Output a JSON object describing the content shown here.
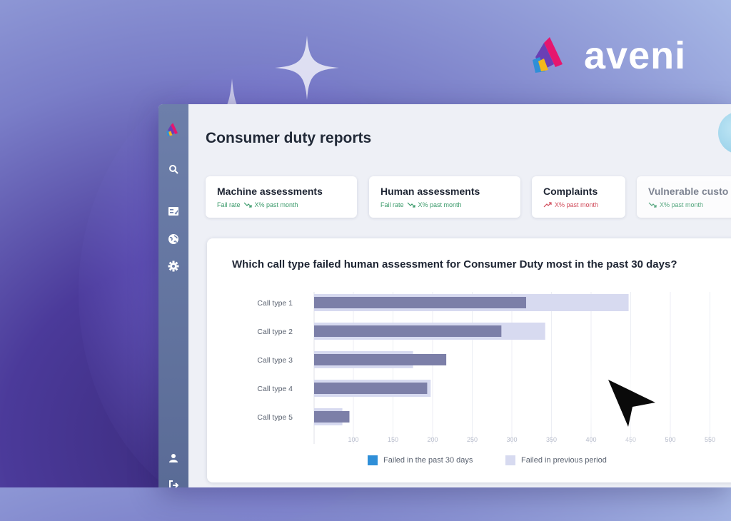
{
  "brand": {
    "name": "aveni",
    "colors": {
      "pink": "#e6166e",
      "blue": "#2f8fd8",
      "yellow": "#f5b81a",
      "purple": "#6a3fb5"
    }
  },
  "header": {
    "title": "Consumer duty reports"
  },
  "sidebar": {
    "items": [
      {
        "icon": "search-icon"
      },
      {
        "icon": "report-icon"
      },
      {
        "icon": "globe-icon"
      },
      {
        "icon": "gear-icon"
      },
      {
        "icon": "user-icon"
      },
      {
        "icon": "logout-icon"
      }
    ]
  },
  "cards": [
    {
      "title": "Machine assessments",
      "prefix": "Fail rate",
      "trend": "down",
      "value": "X% past month"
    },
    {
      "title": "Human assessments",
      "prefix": "Fail rate",
      "trend": "down",
      "value": "X% past month"
    },
    {
      "title": "Complaints",
      "prefix": "",
      "trend": "up",
      "value": "X% past month"
    },
    {
      "title": "Vulnerable custo",
      "prefix": "",
      "trend": "down",
      "value": "X% past month"
    }
  ],
  "chart": {
    "title": "Which call type failed human assessment for Consumer Duty most in the past 30 days?",
    "legend": {
      "current": "Failed in the past 30 days",
      "previous": "Failed in previous period"
    }
  },
  "chart_data": {
    "type": "bar",
    "orientation": "horizontal",
    "categories": [
      "Call type 1",
      "Call type 2",
      "Call type 3",
      "Call type 4",
      "Call type 5"
    ],
    "series": [
      {
        "name": "Failed in the past 30 days",
        "values": [
          300,
          265,
          187,
          160,
          50
        ],
        "color": "#7c7fa8"
      },
      {
        "name": "Failed in previous period",
        "values": [
          445,
          327,
          140,
          165,
          40
        ],
        "color": "#d7daf0"
      }
    ],
    "xticks": [
      "100",
      "150",
      "200",
      "250",
      "300",
      "350",
      "400",
      "450",
      "500",
      "550"
    ],
    "xlim": [
      0,
      500
    ],
    "grid": true,
    "legend_position": "bottom"
  }
}
